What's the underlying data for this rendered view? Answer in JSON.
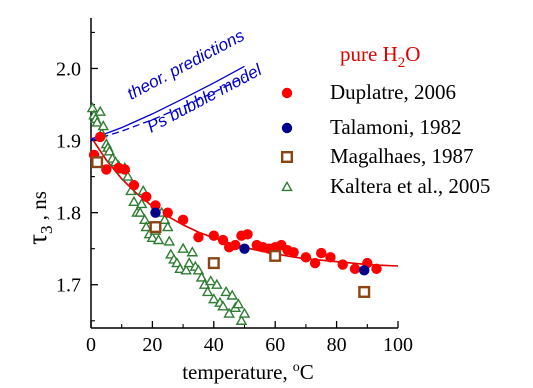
{
  "chart_data": {
    "type": "scatter",
    "xlabel": "temperature,",
    "xlabel_unit": "C",
    "xlabel_unit_sup": "o",
    "ylabel_main": "τ",
    "ylabel_sub": "3",
    "ylabel_unit": " , ns",
    "xlim": [
      0,
      100
    ],
    "ylim": [
      1.64,
      2.07
    ],
    "x_ticks": [
      0,
      20,
      40,
      60,
      80,
      100
    ],
    "y_ticks": [
      1.7,
      1.8,
      1.9,
      2.0
    ],
    "grid": false,
    "legend_placement": "right",
    "legend_title": "pure H",
    "legend_title_sub": "2",
    "legend_title_end": "O",
    "annotation_upper": "theor. predictions",
    "annotation_lower": "Ps bubble model",
    "colors": {
      "duplatre": "#ff0000",
      "talamoni": "#00008b",
      "magalhaes": "#8b4513",
      "kaltera": "#2e7d32",
      "fit": "#e00000",
      "theory": "#0000cc"
    },
    "series": [
      {
        "name": "Duplatre, 2006",
        "marker": "circle",
        "color": "#ff0000",
        "points": [
          [
            1,
            1.88
          ],
          [
            3,
            1.905
          ],
          [
            5,
            1.86
          ],
          [
            9,
            1.862
          ],
          [
            11,
            1.86
          ],
          [
            14,
            1.838
          ],
          [
            18,
            1.822
          ],
          [
            21,
            1.81
          ],
          [
            25,
            1.8
          ],
          [
            30,
            1.79
          ],
          [
            35,
            1.766
          ],
          [
            40,
            1.768
          ],
          [
            43,
            1.762
          ],
          [
            45,
            1.752
          ],
          [
            47,
            1.755
          ],
          [
            49,
            1.768
          ],
          [
            51,
            1.77
          ],
          [
            54,
            1.755
          ],
          [
            56,
            1.752
          ],
          [
            58,
            1.75
          ],
          [
            60,
            1.752
          ],
          [
            62,
            1.755
          ],
          [
            64,
            1.748
          ],
          [
            66,
            1.745
          ],
          [
            70,
            1.738
          ],
          [
            73,
            1.73
          ],
          [
            75,
            1.744
          ],
          [
            78,
            1.738
          ],
          [
            82,
            1.728
          ],
          [
            86,
            1.722
          ],
          [
            90,
            1.73
          ],
          [
            93,
            1.722
          ]
        ]
      },
      {
        "name": "Talamoni, 1982",
        "marker": "circle",
        "color": "#00008b",
        "points": [
          [
            21,
            1.8
          ],
          [
            50,
            1.75
          ],
          [
            89,
            1.72
          ]
        ]
      },
      {
        "name": "Magalhaes, 1987",
        "marker": "square",
        "color": "#8b4513",
        "points": [
          [
            2,
            1.87
          ],
          [
            21,
            1.78
          ],
          [
            40,
            1.73
          ],
          [
            60,
            1.74
          ],
          [
            89,
            1.69
          ]
        ]
      },
      {
        "name": "Kaltera et al., 2005",
        "marker": "triangle",
        "color": "#2e7d32",
        "points": [
          [
            0.5,
            1.945
          ],
          [
            1,
            1.935
          ],
          [
            1.5,
            1.93
          ],
          [
            2,
            1.925
          ],
          [
            3,
            1.94
          ],
          [
            3.5,
            1.91
          ],
          [
            4,
            1.92
          ],
          [
            5,
            1.895
          ],
          [
            5.5,
            1.89
          ],
          [
            6,
            1.885
          ],
          [
            7,
            1.875
          ],
          [
            8,
            1.87
          ],
          [
            9,
            1.865
          ],
          [
            10,
            1.86
          ],
          [
            11,
            1.862
          ],
          [
            12,
            1.85
          ],
          [
            13,
            1.83
          ],
          [
            14,
            1.815
          ],
          [
            15,
            1.8
          ],
          [
            16,
            1.8
          ],
          [
            16.5,
            1.812
          ],
          [
            17,
            1.83
          ],
          [
            17.5,
            1.79
          ],
          [
            18,
            1.78
          ],
          [
            19,
            1.77
          ],
          [
            20,
            1.765
          ],
          [
            21,
            1.775
          ],
          [
            22,
            1.762
          ],
          [
            23,
            1.8
          ],
          [
            24,
            1.79
          ],
          [
            25,
            1.78
          ],
          [
            25.5,
            1.76
          ],
          [
            26,
            1.742
          ],
          [
            27,
            1.735
          ],
          [
            28,
            1.73
          ],
          [
            29,
            1.722
          ],
          [
            30,
            1.75
          ],
          [
            31,
            1.72
          ],
          [
            32,
            1.73
          ],
          [
            33,
            1.745
          ],
          [
            34,
            1.725
          ],
          [
            35,
            1.72
          ],
          [
            36,
            1.71
          ],
          [
            37,
            1.7
          ],
          [
            38,
            1.69
          ],
          [
            39,
            1.705
          ],
          [
            40,
            1.68
          ],
          [
            41,
            1.7
          ],
          [
            42,
            1.675
          ],
          [
            43,
            1.67
          ],
          [
            44,
            1.69
          ],
          [
            45,
            1.66
          ],
          [
            46,
            1.685
          ],
          [
            47,
            1.668
          ],
          [
            48,
            1.673
          ],
          [
            49,
            1.65
          ],
          [
            50,
            1.66
          ]
        ]
      }
    ],
    "fit_curve": [
      [
        0,
        1.905
      ],
      [
        5,
        1.873
      ],
      [
        10,
        1.847
      ],
      [
        15,
        1.826
      ],
      [
        20,
        1.809
      ],
      [
        25,
        1.795
      ],
      [
        30,
        1.783
      ],
      [
        35,
        1.773
      ],
      [
        40,
        1.765
      ],
      [
        45,
        1.758
      ],
      [
        50,
        1.752
      ],
      [
        55,
        1.747
      ],
      [
        60,
        1.743
      ],
      [
        65,
        1.739
      ],
      [
        70,
        1.736
      ],
      [
        75,
        1.734
      ],
      [
        80,
        1.732
      ],
      [
        85,
        1.73
      ],
      [
        90,
        1.728
      ],
      [
        95,
        1.727
      ],
      [
        100,
        1.726
      ]
    ],
    "theory_upper": [
      [
        0,
        1.902
      ],
      [
        10,
        1.918
      ],
      [
        20,
        1.937
      ],
      [
        30,
        1.958
      ],
      [
        40,
        1.98
      ],
      [
        50,
        2.003
      ]
    ],
    "theory_lower": [
      [
        0,
        1.9
      ],
      [
        10,
        1.913
      ],
      [
        20,
        1.929
      ],
      [
        30,
        1.947
      ],
      [
        40,
        1.967
      ],
      [
        50,
        1.988
      ]
    ]
  }
}
